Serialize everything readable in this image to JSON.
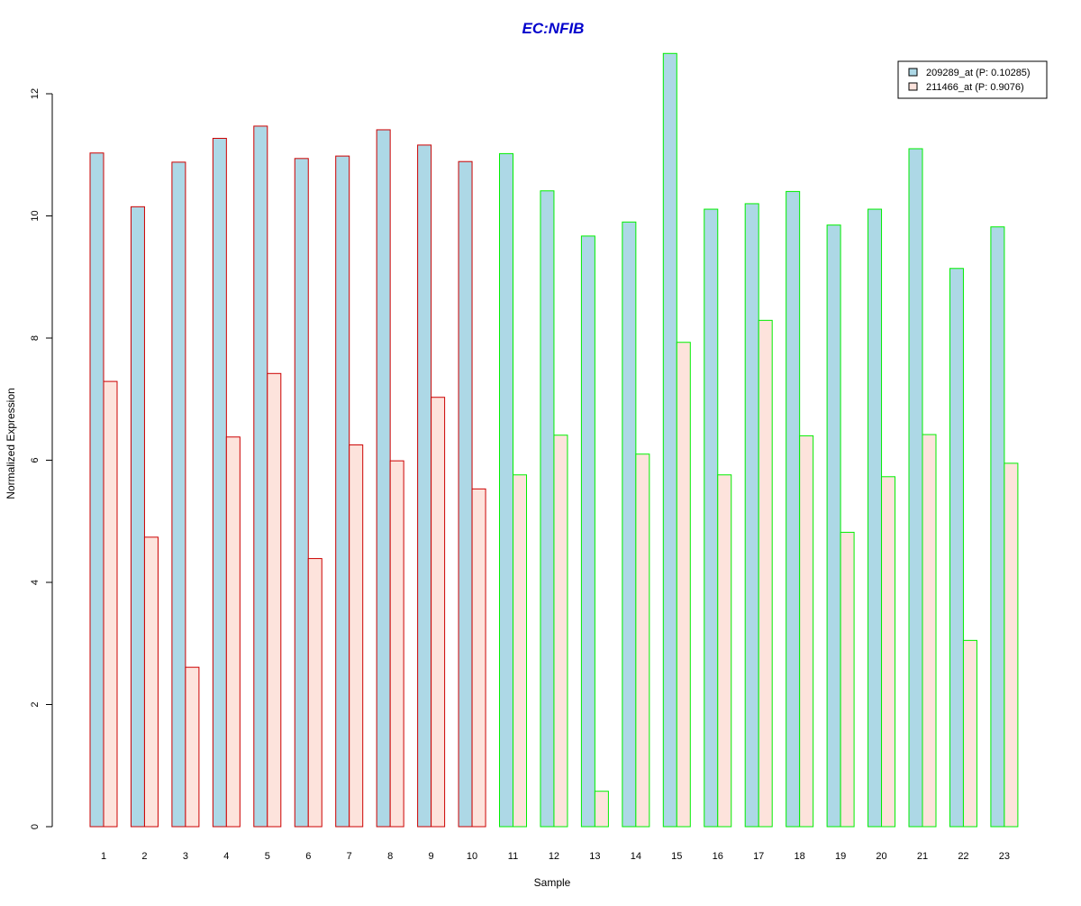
{
  "chart_data": {
    "type": "bar",
    "title": "EC:NFIB",
    "xlabel": "Sample",
    "ylabel": "Normalized Expression",
    "ylim": [
      0,
      12.6
    ],
    "yticks": [
      0,
      2,
      4,
      6,
      8,
      10,
      12
    ],
    "grid": false,
    "legend_position": "top-right",
    "categories": [
      "1",
      "2",
      "3",
      "4",
      "5",
      "6",
      "7",
      "8",
      "9",
      "10",
      "11",
      "12",
      "13",
      "14",
      "15",
      "16",
      "17",
      "18",
      "19",
      "20",
      "21",
      "22",
      "23"
    ],
    "groups": [
      {
        "samples": [
          "1",
          "2",
          "3",
          "4",
          "5",
          "6",
          "7",
          "8",
          "9",
          "10"
        ],
        "border_color": "#cc0000"
      },
      {
        "samples": [
          "11",
          "12",
          "13",
          "14",
          "15",
          "16",
          "17",
          "18",
          "19",
          "20",
          "21",
          "22",
          "23"
        ],
        "border_color": "#00ee00"
      }
    ],
    "series": [
      {
        "name": "209289_at (P: 0.10285)",
        "fill": "#add8e6",
        "values": [
          11.03,
          10.15,
          10.88,
          11.27,
          11.47,
          10.94,
          10.98,
          11.41,
          11.16,
          10.89,
          11.02,
          10.41,
          9.67,
          9.9,
          12.66,
          10.11,
          10.2,
          10.4,
          9.85,
          10.11,
          11.1,
          9.14,
          9.82
        ]
      },
      {
        "name": "211466_at (P: 0.9076)",
        "fill": "#fde3dc",
        "values": [
          7.29,
          4.74,
          2.61,
          6.38,
          7.42,
          4.39,
          6.25,
          5.99,
          7.03,
          5.53,
          5.76,
          6.41,
          0.58,
          6.1,
          7.93,
          5.76,
          8.29,
          6.4,
          4.82,
          5.73,
          6.42,
          3.05,
          5.95
        ]
      }
    ]
  }
}
